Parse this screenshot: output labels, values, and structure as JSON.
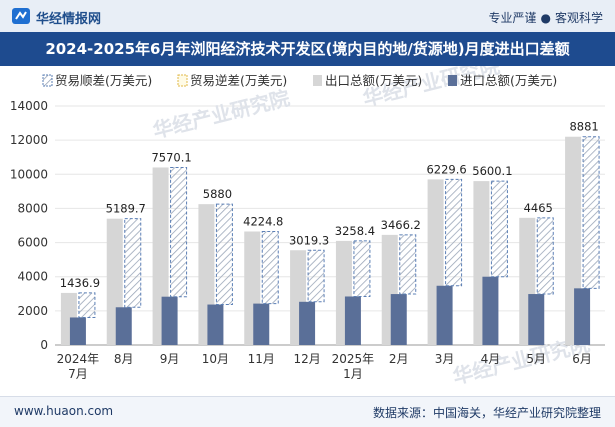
{
  "header": {
    "brand": "华经情报网",
    "tag_left": "专业严谨",
    "tag_sep": "●",
    "tag_right": "客观科学"
  },
  "footer": {
    "site": "www.huaon.com",
    "source": "数据来源：中国海关，华经产业研究院整理"
  },
  "watermark": "华经产业研究院",
  "colors": {
    "surplus": "#ffffff",
    "surplus_hatch": "#9aa6b8",
    "surplus_border": "#5b7fb5",
    "export": "#d6d6d6",
    "import": "#5a6f98",
    "grid": "#e6e6e6",
    "title_bg": "#1e4b8f"
  },
  "chart_data": {
    "type": "bar",
    "title": "2024-2025年6月年浏阳经济技术开发区(境内目的地/货源地)月度进出口差额",
    "categories": [
      "2024年\n7月",
      "8月",
      "9月",
      "10月",
      "11月",
      "12月",
      "2025年\n1月",
      "2月",
      "3月",
      "4月",
      "5月",
      "6月"
    ],
    "series": [
      {
        "name": "贸易顺差(万美元)",
        "values": [
          1436.9,
          5189.7,
          7570.1,
          5880,
          4224.8,
          3019.3,
          3258.4,
          3466.2,
          6229.6,
          5600.1,
          4465,
          8881
        ]
      },
      {
        "name": "贸易逆差(万美元)",
        "values": [
          null,
          null,
          null,
          null,
          null,
          null,
          null,
          null,
          null,
          null,
          null,
          null
        ]
      },
      {
        "name": "出口总额(万美元)",
        "values": [
          3050,
          7400,
          10400,
          8250,
          6650,
          5550,
          6100,
          6450,
          9700,
          9600,
          7450,
          12200
        ]
      },
      {
        "name": "进口总额(万美元)",
        "values": [
          1613.1,
          2210.3,
          2829.9,
          2370,
          2425.2,
          2530.7,
          2841.6,
          2983.8,
          3470.4,
          3999.9,
          2985,
          3319
        ]
      }
    ],
    "data_labels": [
      "1436.9",
      "5189.7",
      "7570.1",
      "5880",
      "4224.8",
      "3019.3",
      "3258.4",
      "3466.2",
      "6229.6",
      "5600.1",
      "4465",
      "8881"
    ],
    "ylim": [
      0,
      14000
    ],
    "yticks": [
      0,
      2000,
      4000,
      6000,
      8000,
      10000,
      12000,
      14000
    ],
    "xlabel": "",
    "ylabel": "",
    "legend_position": "top"
  }
}
